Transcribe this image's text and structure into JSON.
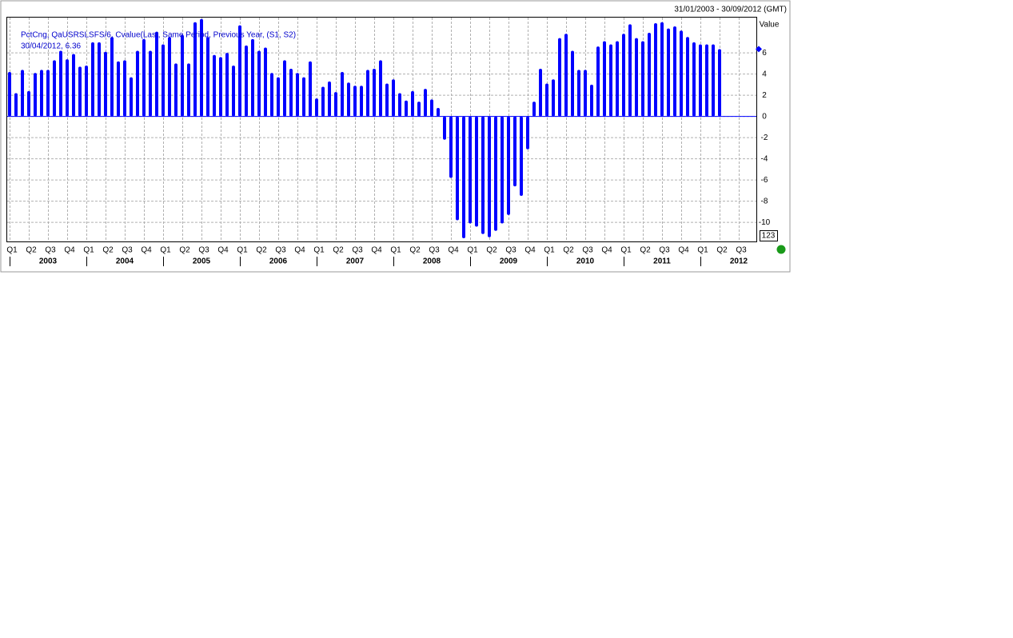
{
  "chart_data": {
    "type": "bar",
    "date_range": "31/01/2003 - 30/09/2012 (GMT)",
    "legend_lines": [
      "PctCng, QaUSRSLSFS/6, Cvalue(Last, Same Period, Previous Year, (S1, S2)",
      "30/04/2012, 6.36"
    ],
    "y_label": "Value",
    "scale_box": "123",
    "color": "#0000ff",
    "grid": true,
    "quarters": [
      "Q1",
      "Q2",
      "Q3",
      "Q4",
      "Q1",
      "Q2",
      "Q3",
      "Q4",
      "Q1",
      "Q2",
      "Q3",
      "Q4",
      "Q1",
      "Q2",
      "Q3",
      "Q4",
      "Q1",
      "Q2",
      "Q3",
      "Q4",
      "Q1",
      "Q2",
      "Q3",
      "Q4",
      "Q1",
      "Q2",
      "Q3",
      "Q4",
      "Q1",
      "Q2",
      "Q3",
      "Q4",
      "Q1",
      "Q2",
      "Q3",
      "Q4",
      "Q1",
      "Q2",
      "Q3"
    ],
    "years": [
      "2003",
      "2004",
      "2005",
      "2006",
      "2007",
      "2008",
      "2009",
      "2010",
      "2011",
      "2012"
    ],
    "values": [
      4.2,
      2.2,
      4.4,
      2.4,
      4.1,
      4.4,
      4.4,
      5.3,
      6.2,
      5.4,
      5.9,
      4.7,
      4.8,
      7.0,
      7.0,
      6.1,
      7.5,
      5.2,
      5.3,
      3.7,
      6.2,
      7.3,
      6.2,
      8.0,
      6.8,
      7.5,
      5.0,
      7.7,
      5.0,
      8.9,
      9.2,
      7.5,
      5.8,
      5.6,
      6.0,
      4.8,
      8.6,
      6.7,
      7.3,
      6.2,
      6.5,
      4.1,
      3.7,
      5.3,
      4.5,
      4.1,
      3.7,
      5.2,
      1.7,
      2.8,
      3.3,
      2.3,
      4.2,
      3.2,
      2.9,
      2.9,
      4.4,
      4.5,
      5.3,
      3.1,
      3.5,
      2.2,
      1.5,
      2.4,
      1.4,
      2.6,
      1.6,
      0.8,
      -2.2,
      -5.8,
      -9.8,
      -11.5,
      -10.1,
      -10.4,
      -11.1,
      -11.4,
      -10.8,
      -10.1,
      -9.3,
      -6.6,
      -7.5,
      -3.1,
      1.4,
      4.5,
      3.1,
      3.5,
      7.4,
      7.8,
      6.2,
      4.4,
      4.4,
      3.0,
      6.6,
      7.1,
      6.8,
      7.1,
      7.8,
      8.7,
      7.4,
      7.1,
      7.9,
      8.8,
      8.9,
      8.3,
      8.5,
      8.1,
      7.5,
      7.0,
      6.8,
      6.8,
      6.8,
      6.36
    ],
    "ylim": [
      -11.8,
      9.33
    ],
    "yticks": [
      -10,
      -8,
      -6,
      -4,
      -2,
      0,
      2,
      4,
      6
    ]
  }
}
